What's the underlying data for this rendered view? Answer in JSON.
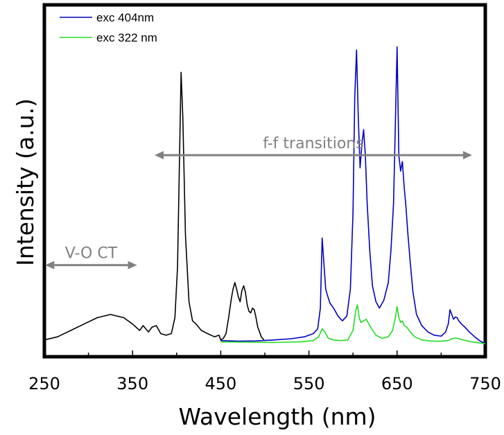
{
  "chart_data": {
    "type": "line",
    "xlabel": "Wavelength (nm)",
    "ylabel": "Intensity (a.u.)",
    "xlim": [
      250,
      750
    ],
    "ylim": [
      0,
      1
    ],
    "x_ticks": [
      "250",
      "350",
      "450",
      "550",
      "650",
      "750"
    ],
    "x_tick_values": [
      250,
      350,
      450,
      550,
      650,
      750
    ],
    "y_ticks_labeled": false,
    "grid": false,
    "legend_position": "top-left",
    "series": [
      {
        "name": "",
        "color": "#000000",
        "x": [
          250,
          265,
          280,
          295,
          310,
          325,
          340,
          350,
          358,
          362,
          368,
          372,
          377,
          382,
          388,
          394,
          398,
          401,
          403,
          405,
          407,
          410,
          414,
          418,
          422,
          428,
          435,
          443,
          448,
          450,
          453,
          456,
          459,
          462,
          464,
          466,
          468,
          470,
          472,
          474,
          476,
          478,
          480,
          482,
          484,
          486,
          488,
          490,
          492,
          494,
          496,
          499
        ],
        "y": [
          0.02,
          0.03,
          0.05,
          0.07,
          0.09,
          0.1,
          0.09,
          0.07,
          0.05,
          0.065,
          0.045,
          0.06,
          0.065,
          0.04,
          0.035,
          0.04,
          0.09,
          0.25,
          0.55,
          0.86,
          0.72,
          0.35,
          0.14,
          0.08,
          0.07,
          0.05,
          0.04,
          0.03,
          0.035,
          0.02,
          0.025,
          0.04,
          0.09,
          0.15,
          0.18,
          0.2,
          0.18,
          0.155,
          0.14,
          0.175,
          0.19,
          0.17,
          0.13,
          0.11,
          0.105,
          0.12,
          0.115,
          0.09,
          0.06,
          0.045,
          0.03,
          0.02
        ]
      },
      {
        "name": "exc 404nm",
        "color": "#0000c0",
        "x": [
          450,
          470,
          490,
          510,
          530,
          545,
          555,
          560,
          563,
          565,
          567,
          569,
          571,
          574,
          578,
          583,
          588,
          593,
          597,
          600,
          602,
          604,
          606,
          608,
          610,
          612,
          614,
          616,
          619,
          622,
          626,
          630,
          635,
          640,
          643,
          646,
          648,
          650,
          652,
          654,
          656,
          658,
          660,
          662,
          665,
          668,
          672,
          678,
          685,
          692,
          700,
          705,
          708,
          710,
          712,
          714,
          716,
          718,
          720,
          723,
          727,
          732,
          738,
          744,
          750
        ],
        "y": [
          0.018,
          0.016,
          0.017,
          0.02,
          0.024,
          0.03,
          0.04,
          0.055,
          0.12,
          0.34,
          0.26,
          0.18,
          0.16,
          0.135,
          0.12,
          0.095,
          0.08,
          0.095,
          0.18,
          0.42,
          0.78,
          0.93,
          0.72,
          0.56,
          0.63,
          0.68,
          0.6,
          0.45,
          0.3,
          0.19,
          0.14,
          0.12,
          0.145,
          0.2,
          0.3,
          0.45,
          0.7,
          0.94,
          0.6,
          0.55,
          0.58,
          0.5,
          0.44,
          0.36,
          0.26,
          0.17,
          0.1,
          0.065,
          0.045,
          0.035,
          0.032,
          0.045,
          0.07,
          0.115,
          0.1,
          0.085,
          0.092,
          0.09,
          0.08,
          0.07,
          0.06,
          0.045,
          0.03,
          0.017,
          0.008
        ]
      },
      {
        "name": "exc 322 nm",
        "color": "#22dd22",
        "x": [
          450,
          480,
          510,
          540,
          555,
          561,
          565,
          568,
          572,
          578,
          586,
          594,
          600,
          603,
          605,
          607,
          609,
          612,
          615,
          620,
          626,
          633,
          640,
          645,
          648,
          650,
          652,
          654,
          656,
          658,
          661,
          665,
          670,
          678,
          690,
          700,
          708,
          712,
          716,
          720,
          725,
          735,
          745,
          750
        ],
        "y": [
          0.014,
          0.013,
          0.012,
          0.014,
          0.018,
          0.03,
          0.055,
          0.045,
          0.025,
          0.02,
          0.018,
          0.02,
          0.05,
          0.11,
          0.13,
          0.09,
          0.075,
          0.08,
          0.085,
          0.06,
          0.035,
          0.025,
          0.03,
          0.05,
          0.09,
          0.125,
          0.09,
          0.075,
          0.08,
          0.065,
          0.06,
          0.045,
          0.03,
          0.02,
          0.016,
          0.016,
          0.018,
          0.024,
          0.026,
          0.024,
          0.02,
          0.014,
          0.01,
          0.008
        ]
      }
    ],
    "annotations": [
      {
        "text": "f-f transitions",
        "from": 375,
        "to": 735,
        "level": 0.6,
        "color": "#808080"
      },
      {
        "text": "V-O CT",
        "from": 251,
        "to": 355,
        "level": 0.255,
        "color": "#808080"
      }
    ]
  }
}
